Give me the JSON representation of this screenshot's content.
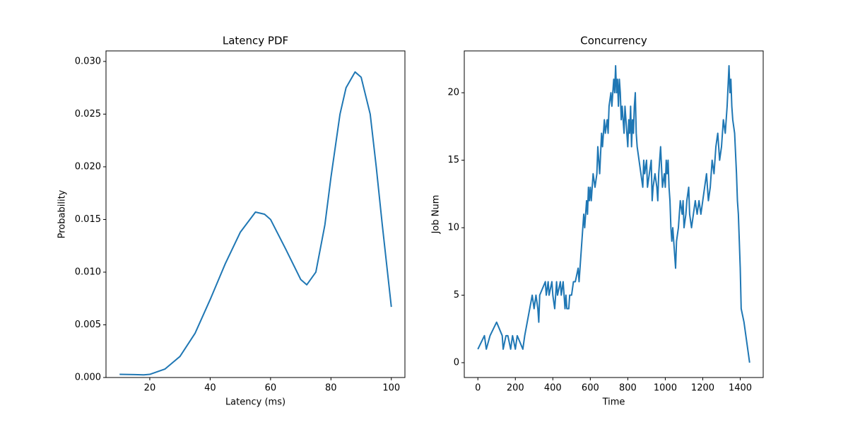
{
  "chart_data": [
    {
      "type": "line",
      "title": "Latency PDF",
      "xlabel": "Latency (ms)",
      "ylabel": "Probability",
      "color": "#1f77b4",
      "x": [
        10,
        15,
        18,
        20,
        25,
        30,
        35,
        40,
        45,
        50,
        55,
        58,
        60,
        65,
        70,
        72,
        75,
        78,
        80,
        83,
        85,
        88,
        90,
        93,
        95,
        97,
        100
      ],
      "values": [
        0.0003,
        0.00028,
        0.00025,
        0.0003,
        0.0008,
        0.002,
        0.0042,
        0.0074,
        0.0108,
        0.0138,
        0.0157,
        0.0155,
        0.015,
        0.0122,
        0.0093,
        0.0088,
        0.01,
        0.0145,
        0.019,
        0.025,
        0.0275,
        0.029,
        0.0285,
        0.025,
        0.02,
        0.0145,
        0.0067
      ],
      "xlim": [
        5.5,
        104.5
      ],
      "ylim": [
        0,
        0.031
      ],
      "xticks": [
        20,
        40,
        60,
        80,
        100
      ],
      "yticks": [
        {
          "value": 0,
          "label": "0.000"
        },
        {
          "value": 0.005,
          "label": "0.005"
        },
        {
          "value": 0.01,
          "label": "0.010"
        },
        {
          "value": 0.015,
          "label": "0.015"
        },
        {
          "value": 0.02,
          "label": "0.020"
        },
        {
          "value": 0.025,
          "label": "0.025"
        },
        {
          "value": 0.03,
          "label": "0.030"
        }
      ]
    },
    {
      "type": "line",
      "title": "Concurrency",
      "xlabel": "Time",
      "ylabel": "Job Num",
      "color": "#1f77b4",
      "x": [
        0,
        35,
        45,
        65,
        100,
        130,
        135,
        150,
        160,
        175,
        185,
        200,
        210,
        240,
        250,
        290,
        300,
        310,
        320,
        325,
        330,
        360,
        365,
        375,
        380,
        395,
        400,
        410,
        415,
        420,
        425,
        440,
        445,
        455,
        460,
        465,
        470,
        475,
        485,
        490,
        500,
        510,
        520,
        535,
        540,
        545,
        560,
        565,
        570,
        575,
        580,
        585,
        590,
        595,
        600,
        605,
        615,
        625,
        635,
        640,
        650,
        660,
        665,
        675,
        680,
        690,
        695,
        700,
        710,
        715,
        725,
        730,
        735,
        740,
        745,
        750,
        755,
        760,
        765,
        770,
        780,
        785,
        790,
        795,
        800,
        805,
        810,
        815,
        820,
        825,
        830,
        835,
        840,
        845,
        850,
        860,
        870,
        880,
        885,
        890,
        900,
        905,
        915,
        925,
        930,
        935,
        945,
        955,
        960,
        965,
        975,
        985,
        995,
        1000,
        1005,
        1010,
        1015,
        1020,
        1025,
        1030,
        1035,
        1040,
        1045,
        1050,
        1055,
        1060,
        1070,
        1075,
        1080,
        1090,
        1095,
        1100,
        1110,
        1115,
        1125,
        1130,
        1140,
        1150,
        1160,
        1170,
        1180,
        1190,
        1200,
        1210,
        1220,
        1230,
        1240,
        1250,
        1260,
        1270,
        1280,
        1290,
        1300,
        1310,
        1320,
        1330,
        1340,
        1345,
        1350,
        1355,
        1360,
        1370,
        1380,
        1385,
        1390,
        1395,
        1400,
        1405,
        1420,
        1430,
        1440,
        1450
      ],
      "values": [
        1,
        2,
        1,
        2,
        3,
        2,
        1,
        2,
        2,
        1,
        2,
        1,
        2,
        1,
        2,
        5,
        4,
        5,
        4,
        3,
        5,
        6,
        5,
        6,
        5,
        6,
        5,
        4,
        5,
        6,
        5,
        6,
        5,
        6,
        5,
        4,
        5,
        4,
        4,
        5,
        5,
        6,
        6,
        7,
        6,
        7,
        10,
        11,
        10,
        11,
        12,
        11,
        13,
        12,
        13,
        12,
        14,
        13,
        14,
        16,
        14,
        17,
        16,
        18,
        17,
        18,
        17,
        19,
        20,
        19,
        21,
        20,
        22,
        20,
        21,
        19,
        21,
        20,
        18,
        19,
        17,
        19,
        18,
        17,
        16,
        18,
        17,
        19,
        16,
        18,
        17,
        19,
        20,
        17,
        16,
        15,
        14,
        13,
        15,
        14,
        15,
        13,
        14,
        15,
        12,
        13,
        14,
        13,
        12,
        14,
        16,
        13,
        14,
        13,
        15,
        14,
        15,
        13,
        12,
        10,
        9,
        10,
        9,
        8,
        7,
        9,
        10,
        11,
        12,
        11,
        12,
        10,
        11,
        12,
        13,
        11,
        10,
        11,
        12,
        11,
        12,
        11,
        12,
        13,
        14,
        12,
        13,
        15,
        14,
        16,
        17,
        15,
        16,
        18,
        17,
        19,
        22,
        20,
        21,
        19,
        18,
        17,
        14,
        12,
        11,
        9,
        7,
        4,
        3,
        2,
        1,
        0
      ],
      "xlim": [
        -72.5,
        1522.5
      ],
      "ylim": [
        -1.1,
        23.1
      ],
      "xticks": [
        0,
        200,
        400,
        600,
        800,
        1000,
        1200,
        1400
      ],
      "yticks": [
        0,
        5,
        10,
        15,
        20
      ]
    }
  ]
}
